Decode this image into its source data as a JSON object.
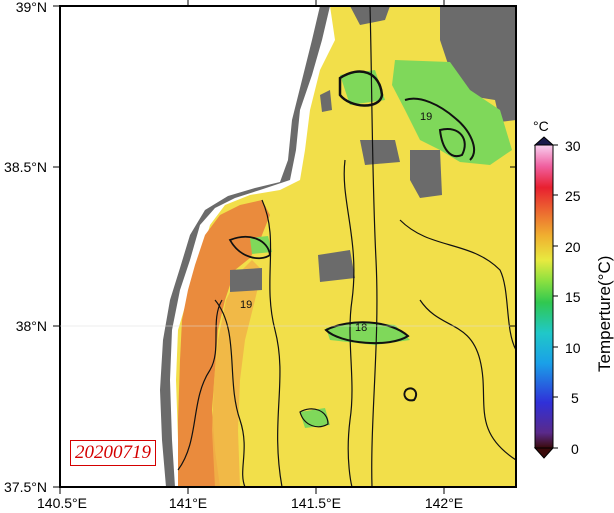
{
  "map": {
    "lat_labels": [
      "39°N",
      "38.5°N",
      "38°N",
      "37.5°N"
    ],
    "lon_labels": [
      "140.5°E",
      "141°E",
      "141.5°E",
      "142°E"
    ],
    "date_stamp": "20200719",
    "contour_labels": [
      "19",
      "19",
      "18"
    ]
  },
  "colorbar": {
    "unit": "°C",
    "title": "Temperture(°C)",
    "tick_labels": [
      "30",
      "25",
      "20",
      "15",
      "10",
      "5",
      "0"
    ],
    "range": [
      0,
      30
    ]
  },
  "colors": {
    "land": "#6b6b6b",
    "sst_warm": "#f4e04a",
    "sst_hot": "#ec8a3e",
    "sst_cool": "#7ed957",
    "stamp": "#d40000"
  }
}
